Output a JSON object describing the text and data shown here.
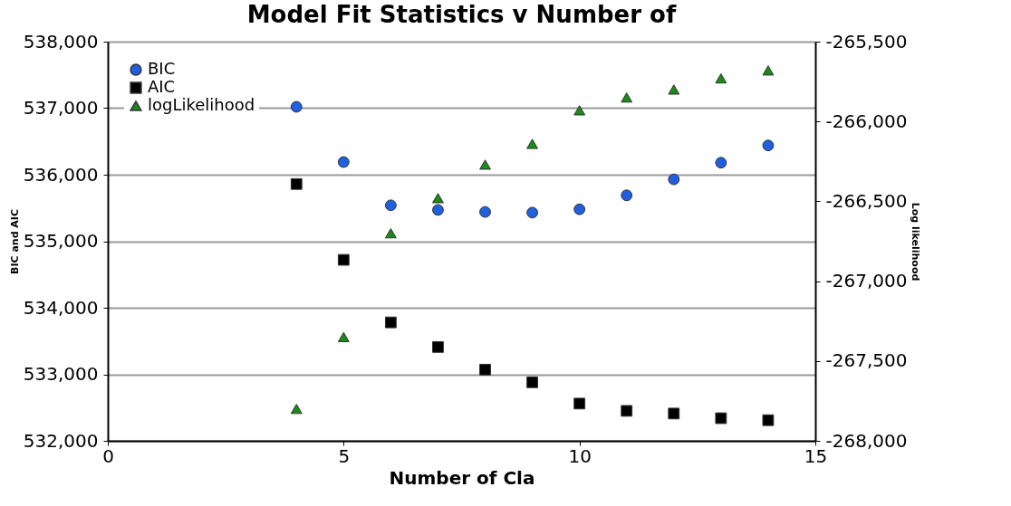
{
  "chart_data": {
    "type": "scatter",
    "title": "Model Fit Statistics v Number of",
    "xlabel": "Number of Cla",
    "ylabel": "BIC and AIC",
    "y2label": "Log likelihood",
    "x": [
      4,
      5,
      6,
      7,
      8,
      9,
      10,
      11,
      12,
      13,
      14
    ],
    "series": [
      {
        "name": "BIC",
        "color": "#1f5fe0",
        "marker": "circle",
        "values": [
          537020,
          536190,
          535540,
          535470,
          535440,
          535430,
          535480,
          535690,
          535930,
          536180,
          536440
        ]
      },
      {
        "name": "AIC",
        "color": "#000000",
        "marker": "square",
        "values": [
          535860,
          534720,
          533780,
          533410,
          533070,
          532880,
          532560,
          532450,
          532410,
          532340,
          532310
        ]
      },
      {
        "name": "logLikelihood",
        "color": "#1a8a1a",
        "marker": "triangle",
        "axis": "y2",
        "values": [
          -267800,
          -267350,
          -266700,
          -266480,
          -266270,
          -266140,
          -265930,
          -265850,
          -265800,
          -265730,
          -265680
        ]
      }
    ],
    "xlim": [
      0,
      15
    ],
    "xticks": [
      0,
      5,
      10,
      15
    ],
    "ylim": [
      532000,
      538000
    ],
    "yticks": [
      {
        "value": 532000,
        "label": "532,000"
      },
      {
        "value": 533000,
        "label": "533,000"
      },
      {
        "value": 534000,
        "label": "534,000"
      },
      {
        "value": 535000,
        "label": "535,000"
      },
      {
        "value": 536000,
        "label": "536,000"
      },
      {
        "value": 537000,
        "label": "537,000"
      },
      {
        "value": 538000,
        "label": "538,000"
      }
    ],
    "y2lim": [
      -268000,
      -265500
    ],
    "y2ticks": [
      {
        "value": -268000,
        "label": "-268,000"
      },
      {
        "value": -267500,
        "label": "-267,500"
      },
      {
        "value": -267000,
        "label": "-267,000"
      },
      {
        "value": -266500,
        "label": "-266,500"
      },
      {
        "value": -266000,
        "label": "-266,000"
      },
      {
        "value": -265500,
        "label": "-265,500"
      }
    ],
    "grid": "y",
    "legend": "top left"
  }
}
